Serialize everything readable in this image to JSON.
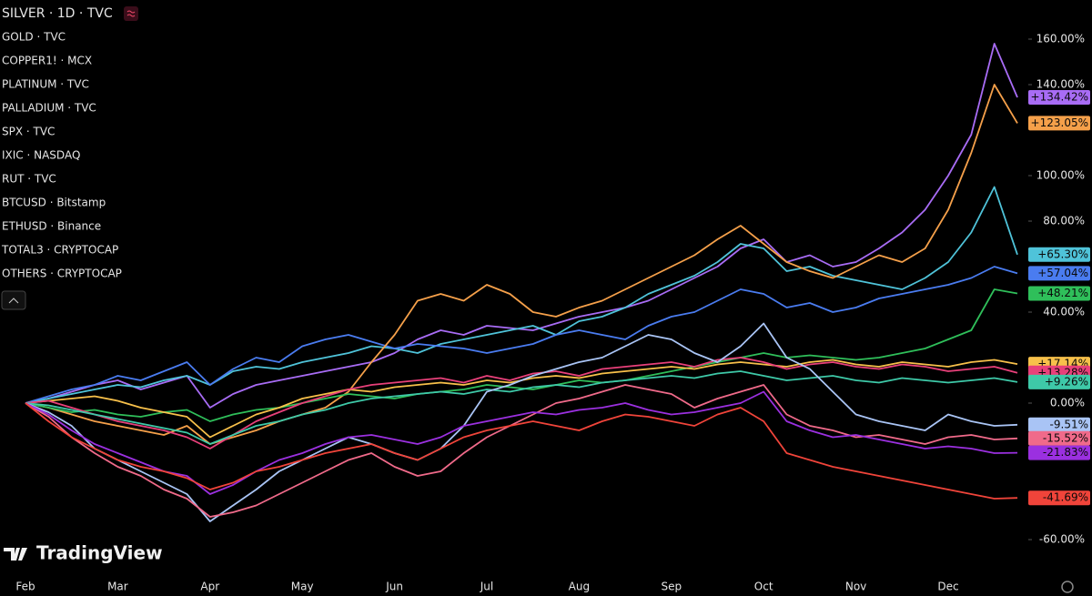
{
  "chart_data": {
    "type": "line",
    "logo": "TradingView",
    "categories": [
      "Feb",
      null,
      null,
      null,
      "Mar",
      null,
      null,
      null,
      "Apr",
      null,
      null,
      null,
      "May",
      null,
      null,
      null,
      "Jun",
      null,
      null,
      null,
      "Jul",
      null,
      null,
      null,
      "Aug",
      null,
      null,
      null,
      "Sep",
      null,
      null,
      null,
      "Oct",
      null,
      null,
      null,
      "Nov",
      null,
      null,
      null,
      "Dec",
      null,
      null,
      null
    ],
    "ylim": [
      -72.8,
      177.2
    ],
    "yticks": [
      {
        "value": 160,
        "label": "160.00%"
      },
      {
        "value": 140,
        "label": "140.00%"
      },
      {
        "value": 100,
        "label": "100.00%"
      },
      {
        "value": 80,
        "label": "80.00%"
      },
      {
        "value": 40,
        "label": "40.00%"
      },
      {
        "value": 0,
        "label": "0.00%"
      },
      {
        "value": -60,
        "label": "-60.00%"
      }
    ],
    "grid": false,
    "series": [
      {
        "name": "SILVER · 1D · TVC",
        "color": "#a86cf5",
        "last_value_label": "+134.42%",
        "values": [
          0,
          2,
          5,
          8,
          10,
          6,
          9,
          12,
          -2,
          4,
          8,
          10,
          12,
          14,
          16,
          18,
          22,
          28,
          32,
          30,
          34,
          33,
          32,
          35,
          38,
          40,
          42,
          45,
          50,
          55,
          60,
          68,
          72,
          62,
          65,
          60,
          62,
          68,
          75,
          85,
          100,
          118,
          158,
          134.42
        ]
      },
      {
        "name": "GOLD · TVC",
        "color": "#4fc3d9",
        "last_value_label": "+65.30%",
        "values": [
          0,
          2,
          4,
          6,
          8,
          7,
          10,
          12,
          8,
          14,
          16,
          15,
          18,
          20,
          22,
          25,
          24,
          22,
          26,
          28,
          30,
          32,
          34,
          30,
          36,
          38,
          42,
          48,
          52,
          56,
          62,
          70,
          68,
          58,
          60,
          56,
          54,
          52,
          50,
          55,
          62,
          75,
          95,
          65.3
        ]
      },
      {
        "name": "COPPER1! · MCX",
        "color": "#4a7cf0",
        "last_value_label": "+57.04%",
        "values": [
          0,
          3,
          6,
          8,
          12,
          10,
          14,
          18,
          8,
          15,
          20,
          18,
          25,
          28,
          30,
          27,
          24,
          26,
          25,
          24,
          22,
          24,
          26,
          30,
          32,
          30,
          28,
          34,
          38,
          40,
          45,
          50,
          48,
          42,
          44,
          40,
          42,
          46,
          48,
          50,
          52,
          55,
          60,
          57.04
        ]
      },
      {
        "name": "PLATINUM · TVC",
        "color": "#f5a04a",
        "last_value_label": "+123.05%",
        "values": [
          0,
          -2,
          -5,
          -8,
          -10,
          -12,
          -14,
          -10,
          -18,
          -15,
          -12,
          -8,
          -5,
          -2,
          5,
          18,
          30,
          45,
          48,
          45,
          52,
          48,
          40,
          38,
          42,
          45,
          50,
          55,
          60,
          65,
          72,
          78,
          70,
          62,
          58,
          55,
          60,
          65,
          62,
          68,
          85,
          110,
          140,
          123.05
        ]
      },
      {
        "name": "PALLADIUM · TVC",
        "color": "#2fbf5a",
        "last_value_label": "+48.21%",
        "values": [
          0,
          -2,
          -4,
          -3,
          -5,
          -6,
          -4,
          -3,
          -8,
          -5,
          -3,
          -2,
          0,
          2,
          4,
          3,
          2,
          4,
          5,
          6,
          8,
          7,
          6,
          8,
          10,
          9,
          10,
          12,
          14,
          16,
          18,
          20,
          22,
          20,
          21,
          20,
          19,
          20,
          22,
          24,
          28,
          32,
          50,
          48.21
        ]
      },
      {
        "name": "SPX · TVC",
        "color": "#f7c04a",
        "last_value_label": "+17.14%",
        "values": [
          0,
          1,
          2,
          3,
          1,
          -2,
          -4,
          -6,
          -15,
          -10,
          -5,
          -2,
          2,
          4,
          6,
          5,
          7,
          8,
          9,
          8,
          10,
          9,
          11,
          12,
          11,
          13,
          14,
          15,
          16,
          15,
          17,
          18,
          17,
          16,
          18,
          19,
          17,
          16,
          18,
          17,
          16,
          18,
          19,
          17.14
        ]
      },
      {
        "name": "IXIC · NASDAQ",
        "color": "#e8407a",
        "last_value_label": "+13.28%",
        "values": [
          0,
          1,
          -2,
          -5,
          -8,
          -10,
          -12,
          -15,
          -20,
          -14,
          -8,
          -4,
          0,
          3,
          6,
          8,
          9,
          10,
          11,
          9,
          12,
          10,
          13,
          14,
          12,
          15,
          16,
          17,
          18,
          16,
          19,
          20,
          18,
          15,
          17,
          18,
          16,
          15,
          17,
          16,
          14,
          15,
          16,
          13.28
        ]
      },
      {
        "name": "RUT · TVC",
        "color": "#3ec9a8",
        "last_value_label": "+9.26%",
        "values": [
          0,
          -1,
          -3,
          -5,
          -7,
          -9,
          -11,
          -13,
          -18,
          -14,
          -10,
          -8,
          -5,
          -3,
          0,
          2,
          3,
          4,
          5,
          4,
          6,
          5,
          7,
          8,
          7,
          9,
          10,
          11,
          12,
          11,
          13,
          14,
          12,
          10,
          11,
          12,
          10,
          9,
          11,
          10,
          9,
          10,
          11,
          9.26
        ]
      },
      {
        "name": "BTCUSD · Bitstamp",
        "color": "#a9c4f5",
        "last_value_label": "-9.51%",
        "values": [
          0,
          -4,
          -10,
          -20,
          -25,
          -30,
          -35,
          -40,
          -52,
          -45,
          -38,
          -30,
          -25,
          -20,
          -15,
          -18,
          -22,
          -25,
          -20,
          -10,
          5,
          8,
          12,
          15,
          18,
          20,
          25,
          30,
          28,
          22,
          18,
          25,
          35,
          20,
          15,
          5,
          -5,
          -8,
          -10,
          -12,
          -5,
          -8,
          -10,
          -9.51
        ]
      },
      {
        "name": "ETHUSD · Binance",
        "color": "#f06a8a",
        "last_value_label": "-15.52%",
        "values": [
          0,
          -6,
          -15,
          -22,
          -28,
          -32,
          -38,
          -42,
          -50,
          -48,
          -45,
          -40,
          -35,
          -30,
          -25,
          -22,
          -28,
          -32,
          -30,
          -22,
          -15,
          -10,
          -5,
          0,
          2,
          5,
          8,
          6,
          4,
          -2,
          2,
          5,
          8,
          -5,
          -10,
          -12,
          -15,
          -14,
          -16,
          -18,
          -15,
          -14,
          -16,
          -15.52
        ]
      },
      {
        "name": "TOTAL3 · CRYPTOCAP",
        "color": "#9b30e0",
        "last_value_label": "-21.83%",
        "values": [
          0,
          -5,
          -12,
          -18,
          -22,
          -26,
          -30,
          -32,
          -40,
          -36,
          -30,
          -25,
          -22,
          -18,
          -15,
          -14,
          -16,
          -18,
          -15,
          -10,
          -8,
          -6,
          -4,
          -5,
          -3,
          -2,
          0,
          -3,
          -5,
          -4,
          -2,
          0,
          5,
          -8,
          -12,
          -15,
          -14,
          -16,
          -18,
          -20,
          -19,
          -20,
          -22,
          -21.83
        ]
      },
      {
        "name": "OTHERS · CRYPTOCAP",
        "color": "#f0443a",
        "last_value_label": "-41.69%",
        "values": [
          0,
          -8,
          -15,
          -20,
          -25,
          -28,
          -30,
          -33,
          -38,
          -35,
          -30,
          -28,
          -25,
          -22,
          -20,
          -18,
          -22,
          -25,
          -20,
          -15,
          -12,
          -10,
          -8,
          -10,
          -12,
          -8,
          -5,
          -6,
          -8,
          -10,
          -5,
          -2,
          -8,
          -22,
          -25,
          -28,
          -30,
          -32,
          -34,
          -36,
          -38,
          -40,
          -42,
          -41.69
        ]
      }
    ]
  }
}
